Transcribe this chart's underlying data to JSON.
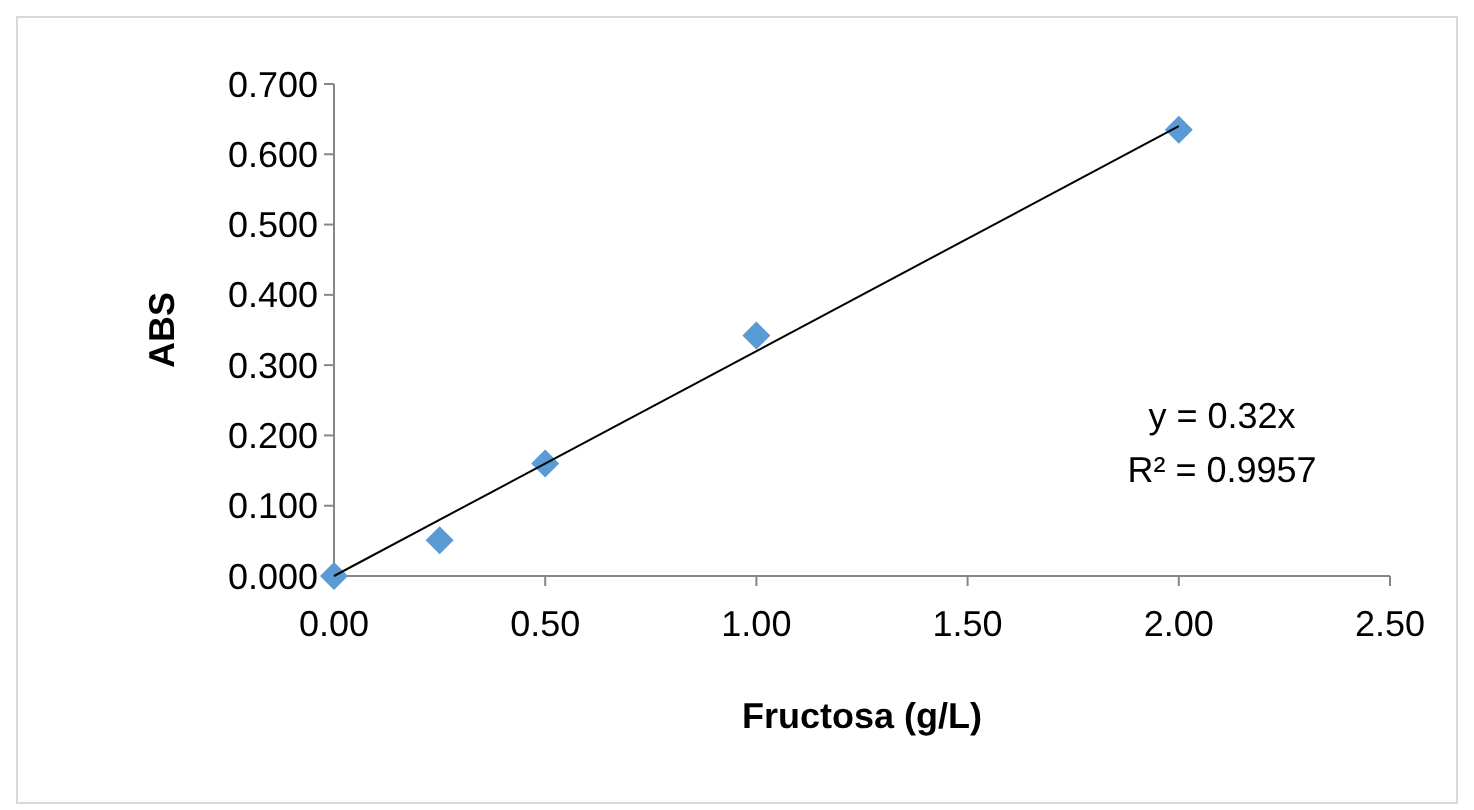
{
  "chart_data": {
    "type": "scatter",
    "xlabel": "Fructosa (g/L)",
    "ylabel": "ABS",
    "x": [
      0,
      0.25,
      0.5,
      1,
      2
    ],
    "series": [
      {
        "color": "#5b9bd5",
        "marker": "diamond",
        "values": [
          0,
          0.051,
          0.16,
          0.342,
          0.635
        ]
      },
      {
        "type": "line",
        "color": "#000000",
        "marker": "none",
        "x": [
          0,
          2
        ],
        "values": [
          0,
          0.64
        ]
      }
    ],
    "xlim": [
      0,
      2.5
    ],
    "xticks": [
      {
        "value": 0,
        "label": "0.00"
      },
      {
        "value": 0.5,
        "label": "0.50"
      },
      {
        "value": 1,
        "label": "1.00"
      },
      {
        "value": 1.5,
        "label": "1.50"
      },
      {
        "value": 2,
        "label": "2.00"
      },
      {
        "value": 2.5,
        "label": "2.50"
      }
    ],
    "ylim": [
      0,
      0.7
    ],
    "yticks": [
      {
        "value": 0,
        "label": "0.000"
      },
      {
        "value": 0.1,
        "label": "0.100"
      },
      {
        "value": 0.2,
        "label": "0.200"
      },
      {
        "value": 0.3,
        "label": "0.300"
      },
      {
        "value": 0.4,
        "label": "0.400"
      },
      {
        "value": 0.5,
        "label": "0.500"
      },
      {
        "value": 0.6,
        "label": "0.600"
      },
      {
        "value": 0.7,
        "label": "0.700"
      }
    ],
    "annotations": [
      "y = 0.32x",
      "R² = 0.9957"
    ],
    "grid": false
  }
}
